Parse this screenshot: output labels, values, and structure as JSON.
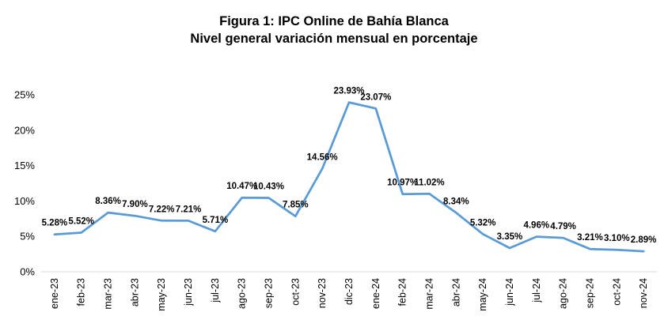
{
  "chart_data": {
    "type": "line",
    "title": "Figura 1: IPC Online de Bahía Blanca",
    "subtitle": "Nivel general variación mensual en porcentaje",
    "xlabel": "",
    "ylabel": "",
    "ylim": [
      0,
      25
    ],
    "yticks": [
      "0%",
      "5%",
      "10%",
      "15%",
      "20%",
      "25%"
    ],
    "grid": false,
    "line_color": "#5B9BD5",
    "categories": [
      "ene-23",
      "feb-23",
      "mar-23",
      "abr-23",
      "may-23",
      "jun-23",
      "jul-23",
      "ago-23",
      "sep-23",
      "oct-23",
      "nov-23",
      "dic-23",
      "ene-24",
      "feb-24",
      "mar-24",
      "abr-24",
      "may-24",
      "jun-24",
      "jul-24",
      "ago-24",
      "sep-24",
      "oct-24",
      "nov-24"
    ],
    "values": [
      5.28,
      5.52,
      8.36,
      7.9,
      7.22,
      7.21,
      5.71,
      10.47,
      10.43,
      7.85,
      14.56,
      23.93,
      23.07,
      10.97,
      11.02,
      8.34,
      5.32,
      3.35,
      4.96,
      4.79,
      3.21,
      3.1,
      2.89
    ],
    "data_labels": [
      "5.28%",
      "5.52%",
      "8.36%",
      "7.90%",
      "7.22%",
      "7.21%",
      "5.71%",
      "10.47%",
      "10.43%",
      "7.85%",
      "14.56%",
      "23.93%",
      "23.07%",
      "10.97%",
      "11.02%",
      "8.34%",
      "5.32%",
      "3.35%",
      "4.96%",
      "4.79%",
      "3.21%",
      "3.10%",
      "2.89%"
    ]
  }
}
